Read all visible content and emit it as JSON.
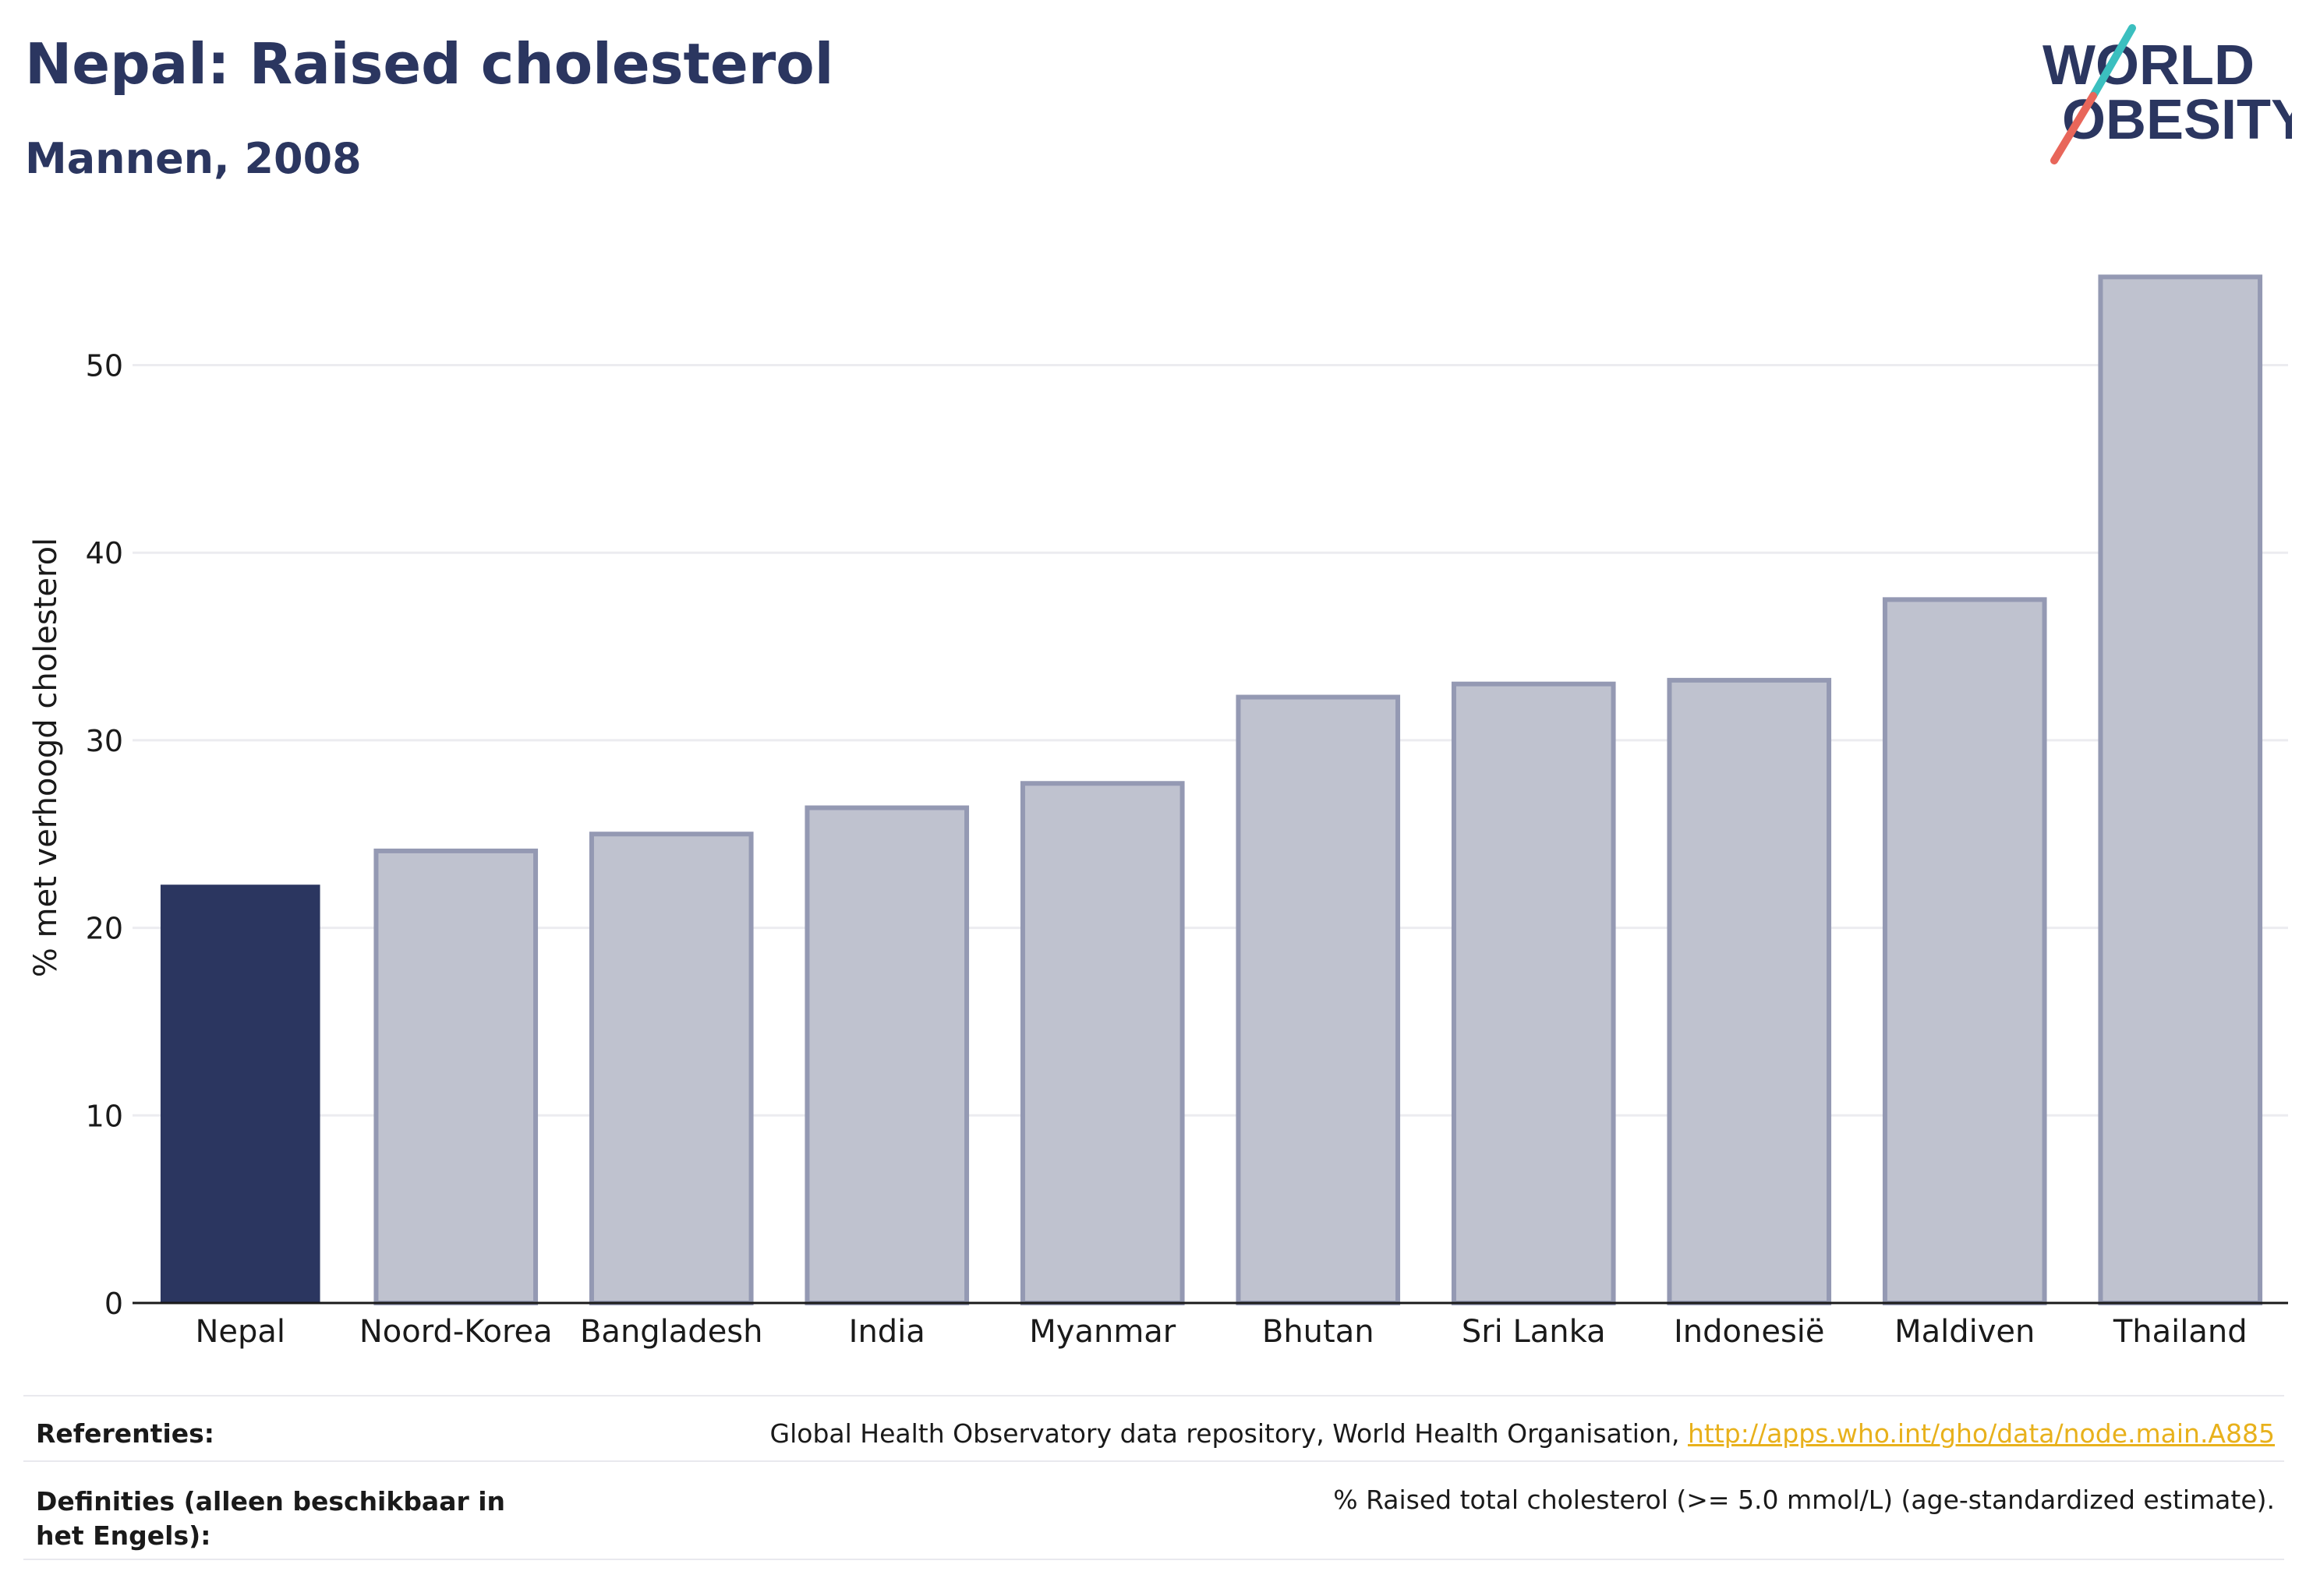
{
  "header": {
    "title": "Nepal: Raised cholesterol",
    "subtitle": "Mannen, 2008"
  },
  "logo": {
    "line1": "WORLD",
    "line2": "OBESITY",
    "colors": {
      "text": "#2b3660",
      "slash_top": "#3bbfbf",
      "slash_bottom": "#e8665a"
    }
  },
  "chart_data": {
    "type": "bar",
    "categories": [
      "Nepal",
      "Noord-Korea",
      "Bangladesh",
      "India",
      "Myanmar",
      "Bhutan",
      "Sri Lanka",
      "Indonesië",
      "Maldiven",
      "Thailand"
    ],
    "values": [
      22.3,
      24.1,
      25.0,
      26.4,
      27.7,
      32.3,
      33.0,
      33.2,
      37.5,
      54.7
    ],
    "highlight_index": 0,
    "highlight_color": "#2b3660",
    "bar_color": "#bfc2cf",
    "bar_edge_color": "#9499b3",
    "ylabel": "% met verhoogd cholesterol",
    "xlabel": "",
    "ylim": [
      0,
      57
    ],
    "yticks": [
      0,
      10,
      20,
      30,
      40,
      50
    ],
    "grid": true
  },
  "footer": {
    "references_label": "Referenties:",
    "references_text": "Global Health Observatory data repository, World Health Organisation, ",
    "references_link": "http://apps.who.int/gho/data/node.main.A885",
    "definitions_label": "Definities (alleen beschikbaar in het Engels):",
    "definitions_text": "% Raised total cholesterol (>= 5.0 mmol/L) (age-standardized estimate)."
  }
}
